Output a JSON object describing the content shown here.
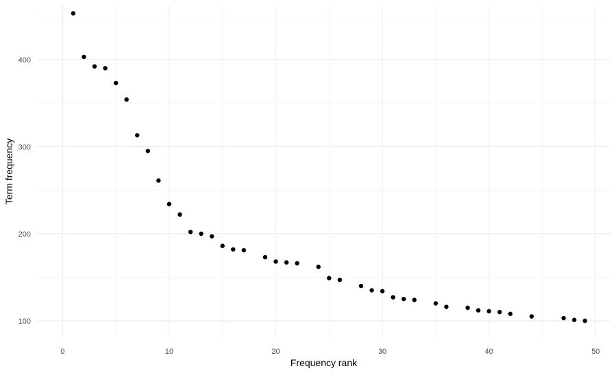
{
  "chart_data": {
    "type": "scatter",
    "title": "",
    "xlabel": "Frequency rank",
    "ylabel": "Term frequency",
    "xlim": [
      -2.4,
      51.4
    ],
    "ylim": [
      81,
      462
    ],
    "x_ticks": [
      0,
      10,
      20,
      30,
      40,
      50
    ],
    "y_ticks": [
      100,
      200,
      300,
      400
    ],
    "x_tick_labels": [
      "0",
      "10",
      "20",
      "30",
      "40",
      "50"
    ],
    "y_tick_labels": [
      "100",
      "200",
      "300",
      "400"
    ],
    "grid": true,
    "legend": "none",
    "point_color": "#000000",
    "series": [
      {
        "x": [
          1,
          2,
          3,
          4,
          5,
          6,
          7,
          8,
          9,
          10,
          11,
          12,
          13,
          14,
          15,
          16,
          17,
          19,
          20,
          21,
          22,
          24,
          25,
          26,
          28,
          29,
          30,
          31,
          32,
          33,
          35,
          36,
          38,
          39,
          40,
          41,
          42,
          44,
          47,
          48,
          49
        ],
        "y": [
          453,
          403,
          392,
          390,
          373,
          354,
          313,
          295,
          261,
          234,
          222,
          202,
          200,
          197,
          186,
          182,
          181,
          173,
          168,
          167,
          166,
          162,
          149,
          147,
          140,
          135,
          134,
          127,
          125,
          124,
          120,
          116,
          115,
          112,
          111,
          110,
          108,
          105,
          103,
          101,
          100
        ]
      }
    ]
  }
}
